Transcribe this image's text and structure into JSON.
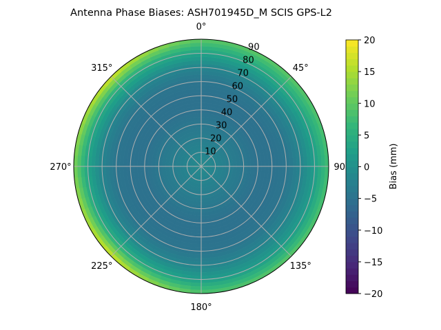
{
  "chart_data": {
    "type": "heatmap",
    "projection": "polar",
    "title": "Antenna Phase Biases: ASH701945D_M    SCIS GPS-L2",
    "theta_direction": "clockwise",
    "theta_zero": "top",
    "theta_tick_labels": [
      "0°",
      "45°",
      "90°",
      "135°",
      "180°",
      "225°",
      "270°",
      "315°"
    ],
    "theta_ticks_deg": [
      0,
      45,
      90,
      135,
      180,
      225,
      270,
      315
    ],
    "r_tick_labels": [
      "10",
      "20",
      "30",
      "40",
      "50",
      "60",
      "70",
      "80",
      "90"
    ],
    "r_ticks": [
      10,
      20,
      30,
      40,
      50,
      60,
      70,
      80,
      90
    ],
    "rlim": [
      0,
      90
    ],
    "grid": true,
    "colormap": "viridis",
    "colorbar": {
      "label": "Bias (mm)",
      "range": [
        -20,
        20
      ],
      "ticks": [
        20,
        15,
        10,
        5,
        0,
        -5,
        -10,
        -15,
        -20
      ],
      "tick_labels": [
        "20",
        "15",
        "10",
        "5",
        "0",
        "−5",
        "−10",
        "−15",
        "−20"
      ]
    },
    "azimuth_deg": [
      0,
      45,
      90,
      135,
      180,
      225,
      270,
      315
    ],
    "zenith_deg": [
      0,
      10,
      20,
      30,
      40,
      50,
      60,
      70,
      80,
      90
    ],
    "bias_mm": [
      [
        -1,
        -2,
        -3,
        -4,
        -5,
        -5,
        -4.5,
        -2,
        3,
        10
      ],
      [
        -1,
        -2,
        -3,
        -4,
        -5,
        -5,
        -4,
        -1,
        4,
        10
      ],
      [
        -1,
        -2,
        -3,
        -4,
        -5,
        -5,
        -4.5,
        -2,
        2,
        8
      ],
      [
        -1,
        -2,
        -3,
        -4,
        -5,
        -5,
        -4.5,
        -2,
        2,
        10
      ],
      [
        -1,
        -2,
        -3,
        -4,
        -5,
        -5,
        -4.5,
        -2,
        2,
        9
      ],
      [
        -1,
        -2,
        -3,
        -4,
        -5,
        -5,
        -4.5,
        -1.5,
        5,
        18
      ],
      [
        -1,
        -2,
        -3,
        -4,
        -5,
        -5,
        -4.5,
        -2,
        3,
        12
      ],
      [
        -1,
        -2,
        -3,
        -4,
        -5,
        -5,
        -4.5,
        -1.5,
        5,
        18
      ]
    ]
  }
}
